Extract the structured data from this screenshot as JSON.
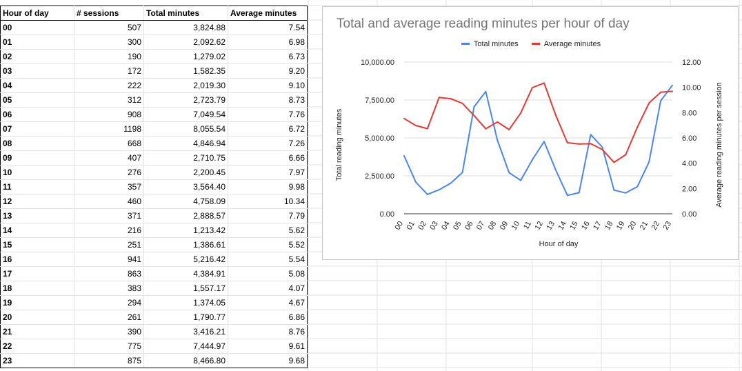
{
  "sheet": {
    "headers": [
      "Hour of day",
      "# sessions",
      "Total minutes",
      "Average minutes"
    ],
    "rows": [
      [
        "00",
        "507",
        "3,824.88",
        "7.54"
      ],
      [
        "01",
        "300",
        "2,092.62",
        "6.98"
      ],
      [
        "02",
        "190",
        "1,279.02",
        "6.73"
      ],
      [
        "03",
        "172",
        "1,582.35",
        "9.20"
      ],
      [
        "04",
        "222",
        "2,019.30",
        "9.10"
      ],
      [
        "05",
        "312",
        "2,723.79",
        "8.73"
      ],
      [
        "06",
        "908",
        "7,049.54",
        "7.76"
      ],
      [
        "07",
        "1198",
        "8,055.54",
        "6.72"
      ],
      [
        "08",
        "668",
        "4,846.94",
        "7.26"
      ],
      [
        "09",
        "407",
        "2,710.75",
        "6.66"
      ],
      [
        "10",
        "276",
        "2,200.45",
        "7.97"
      ],
      [
        "11",
        "357",
        "3,564.40",
        "9.98"
      ],
      [
        "12",
        "460",
        "4,758.09",
        "10.34"
      ],
      [
        "13",
        "371",
        "2,888.57",
        "7.79"
      ],
      [
        "14",
        "216",
        "1,213.42",
        "5.62"
      ],
      [
        "15",
        "251",
        "1,386.61",
        "5.52"
      ],
      [
        "16",
        "941",
        "5,216.42",
        "5.54"
      ],
      [
        "17",
        "863",
        "4,384.91",
        "5.08"
      ],
      [
        "18",
        "383",
        "1,557.17",
        "4.07"
      ],
      [
        "19",
        "294",
        "1,374.05",
        "4.67"
      ],
      [
        "20",
        "261",
        "1,790.77",
        "6.86"
      ],
      [
        "21",
        "390",
        "3,416.21",
        "8.76"
      ],
      [
        "22",
        "775",
        "7,444.97",
        "9.61"
      ],
      [
        "23",
        "875",
        "8,466.80",
        "9.68"
      ]
    ]
  },
  "chart_data": {
    "type": "line",
    "title": "Total and average reading minutes per hour of day",
    "xlabel": "Hour of day",
    "ylabel": "Total reading minutes",
    "y2label": "Average reading minutes per session",
    "categories": [
      "00",
      "01",
      "02",
      "03",
      "04",
      "05",
      "06",
      "07",
      "08",
      "09",
      "10",
      "11",
      "12",
      "13",
      "14",
      "15",
      "16",
      "17",
      "18",
      "19",
      "20",
      "21",
      "22",
      "23"
    ],
    "ylim": [
      0,
      10000
    ],
    "y_ticks": [
      "0.00",
      "2,500.00",
      "5,000.00",
      "7,500.00",
      "10,000.00"
    ],
    "y2lim": [
      0,
      12
    ],
    "y2_ticks": [
      "0.00",
      "2.00",
      "4.00",
      "6.00",
      "8.00",
      "10.00",
      "12.00"
    ],
    "legend_position": "top",
    "grid": true,
    "series": [
      {
        "name": "Total minutes",
        "axis": "left",
        "color": "#4a86e8",
        "values": [
          3824.88,
          2092.62,
          1279.02,
          1582.35,
          2019.3,
          2723.79,
          7049.54,
          8055.54,
          4846.94,
          2710.75,
          2200.45,
          3564.4,
          4758.09,
          2888.57,
          1213.42,
          1386.61,
          5216.42,
          4384.91,
          1557.17,
          1374.05,
          1790.77,
          3416.21,
          7444.97,
          8466.8
        ]
      },
      {
        "name": "Average minutes",
        "axis": "right",
        "color": "#e53935",
        "values": [
          7.54,
          6.98,
          6.73,
          9.2,
          9.1,
          8.73,
          7.76,
          6.72,
          7.26,
          6.66,
          7.97,
          9.98,
          10.34,
          7.79,
          5.62,
          5.52,
          5.54,
          5.08,
          4.07,
          4.67,
          6.86,
          8.76,
          9.61,
          9.68
        ]
      }
    ]
  }
}
